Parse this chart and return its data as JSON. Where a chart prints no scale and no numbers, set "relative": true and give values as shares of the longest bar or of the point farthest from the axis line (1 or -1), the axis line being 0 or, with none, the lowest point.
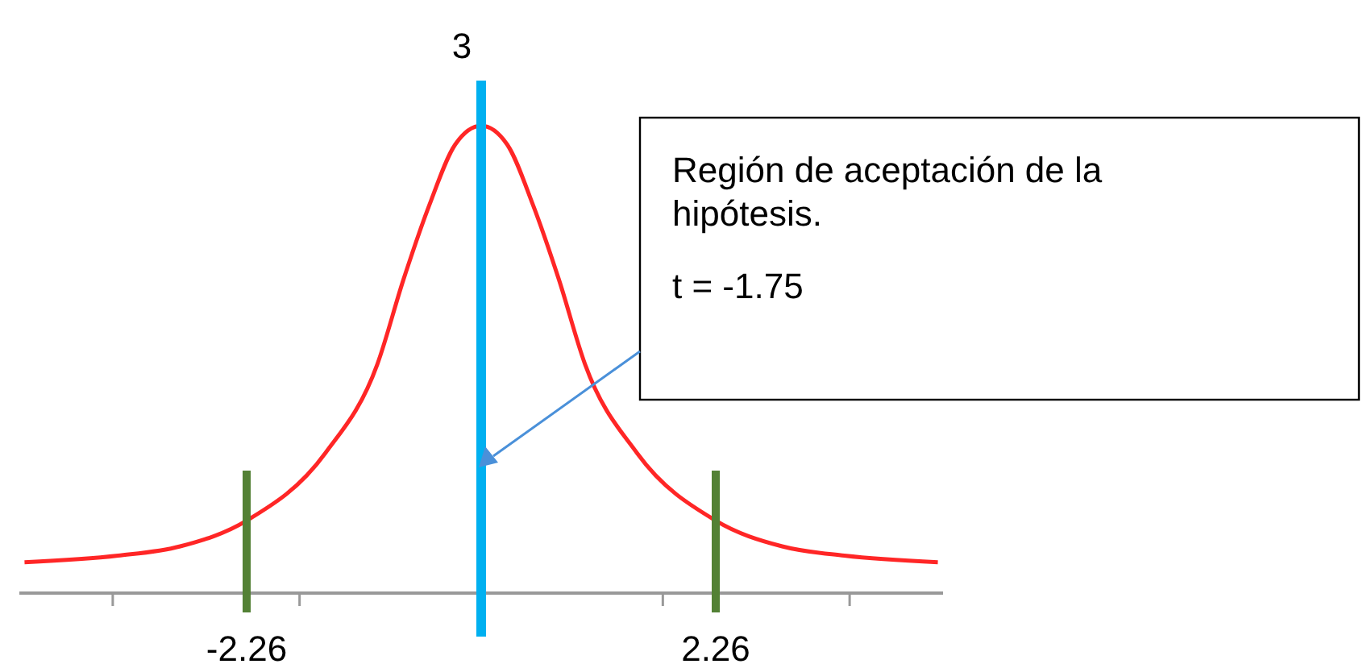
{
  "chart_data": {
    "type": "line",
    "relative": true,
    "x": [
      -4.4,
      -3.5,
      -2.9,
      -2.26,
      -1.5,
      -1.0,
      -0.75,
      -0.5,
      -0.25,
      0,
      0.25,
      0.5,
      0.75,
      1.0,
      1.5,
      2.26,
      2.9,
      3.5,
      4.4
    ],
    "series": [
      {
        "color": "#ff0000",
        "values": [
          0.066,
          0.08,
          0.1,
          0.155,
          0.3,
          0.49,
          0.67,
          0.83,
          0.96,
          1,
          0.96,
          0.83,
          0.67,
          0.49,
          0.3,
          0.155,
          0.1,
          0.08,
          0.066
        ]
      }
    ],
    "xlim": [
      -4.45,
      4.45
    ],
    "xticks": [
      {
        "value": -3.55,
        "label": null
      },
      {
        "value": -2.26,
        "label": "-2.26"
      },
      {
        "value": -1.75,
        "label": null
      },
      {
        "value": 1.75,
        "label": null
      },
      {
        "value": 2.26,
        "label": "2.26"
      },
      {
        "value": 3.55,
        "label": null
      }
    ],
    "ref_lines": [
      {
        "axis": "x",
        "value": -2.26,
        "label": null,
        "color": "#538135"
      },
      {
        "axis": "x",
        "value": 2.26,
        "label": null,
        "color": "#538135"
      },
      {
        "axis": "x",
        "value": 0,
        "label": null,
        "color": "#00b0f0",
        "line_style": "solid"
      }
    ],
    "annotations": [
      "3",
      "Región de aceptación de la hipótesis.",
      "t = -1.75"
    ],
    "grid": false,
    "marker": "none",
    "line_style": "solid"
  }
}
